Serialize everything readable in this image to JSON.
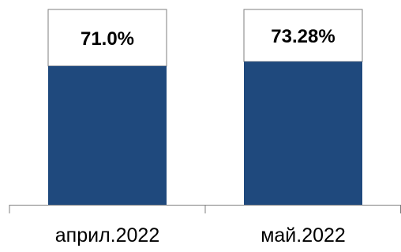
{
  "chart_data": {
    "type": "bar",
    "categories": [
      "април.2022",
      "май.2022"
    ],
    "series": [
      {
        "values": [
          71.0,
          73.28
        ],
        "labels": [
          "71.0%",
          "73.28%"
        ],
        "color": "#1F497D"
      }
    ],
    "stack_total": 100,
    "remainder_fill": "#FFFFFF",
    "outline_color": "#7F7F7F",
    "ylim": [
      0,
      100
    ],
    "grid": false,
    "legend": false
  }
}
